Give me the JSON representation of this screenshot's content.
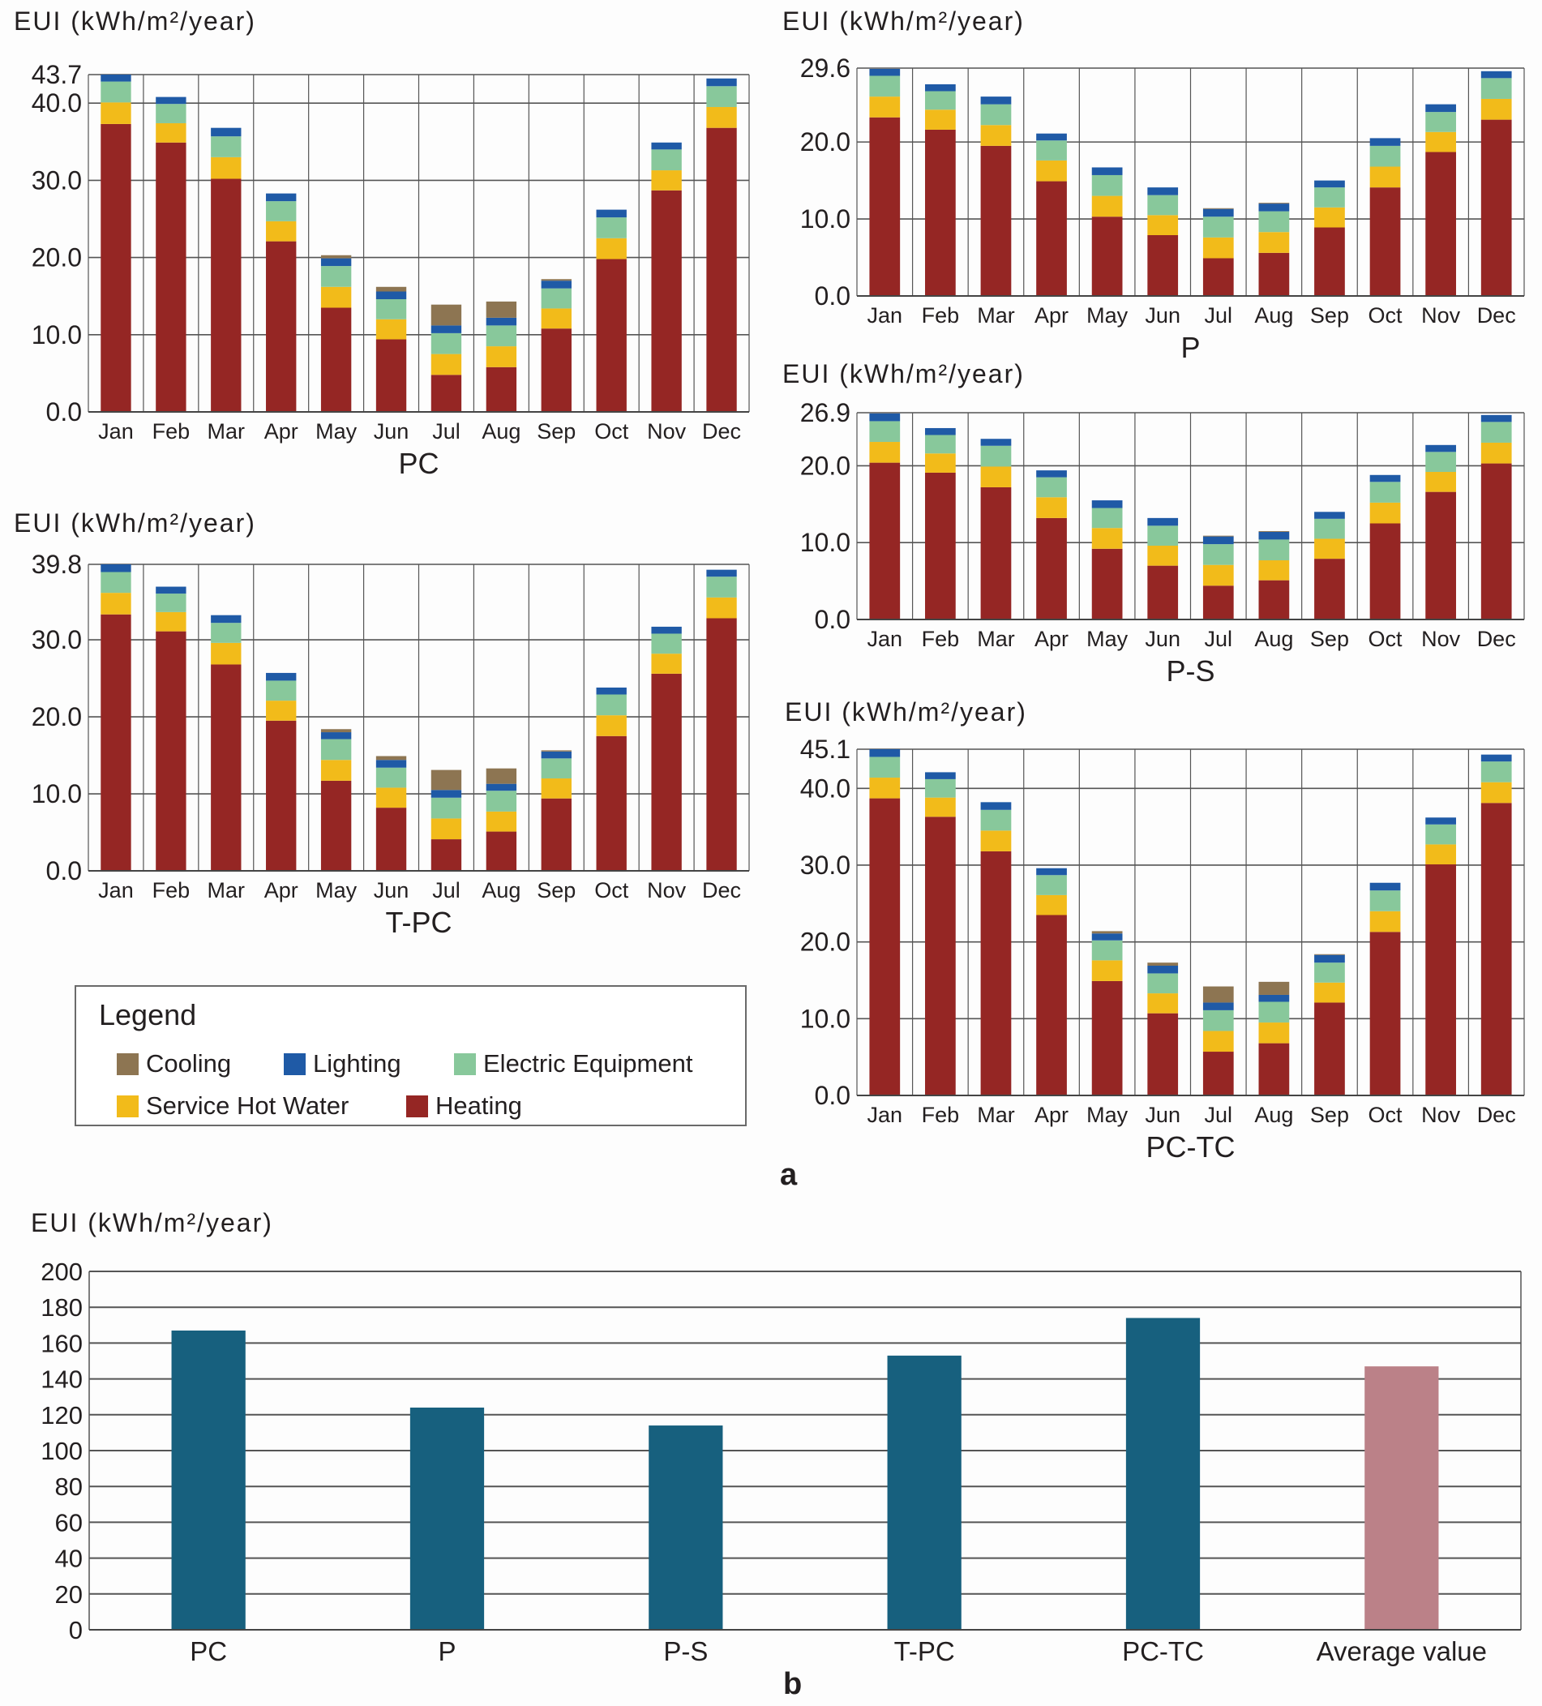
{
  "colors": {
    "Heating": "#952624",
    "Service Hot Water": "#f2bb1a",
    "Electric Equipment": "#88c89b",
    "Lighting": "#1f5aa6",
    "Cooling": "#8d7552",
    "bar": "#17607e",
    "average": "#bb8188"
  },
  "legend": {
    "title": "Legend",
    "items": [
      "Cooling",
      "Lighting",
      "Electric Equipment",
      "Service Hot Water",
      "Heating"
    ]
  },
  "panel_labels": {
    "a": "a",
    "b": "b"
  },
  "chart_data": [
    {
      "type": "bar",
      "stacked": true,
      "title": "PC",
      "ylabel": "EUI (kWh/m²/year)",
      "ylim": [
        0,
        43.7
      ],
      "yticks": [
        "0.0",
        "10.0",
        "20.0",
        "30.0",
        "40.0",
        "43.7"
      ],
      "ytick_values": [
        0,
        10,
        20,
        30,
        40,
        43.7
      ],
      "categories": [
        "Jan",
        "Feb",
        "Mar",
        "Apr",
        "May",
        "Jun",
        "Jul",
        "Aug",
        "Sep",
        "Oct",
        "Nov",
        "Dec"
      ],
      "series": [
        {
          "name": "Heating",
          "values": [
            37.3,
            34.9,
            30.2,
            22.1,
            13.5,
            9.4,
            4.8,
            5.8,
            10.8,
            19.8,
            28.7,
            36.8
          ]
        },
        {
          "name": "Service Hot Water",
          "values": [
            2.8,
            2.5,
            2.8,
            2.6,
            2.7,
            2.6,
            2.7,
            2.7,
            2.6,
            2.7,
            2.6,
            2.7
          ]
        },
        {
          "name": "Electric Equipment",
          "values": [
            2.7,
            2.5,
            2.7,
            2.6,
            2.7,
            2.6,
            2.7,
            2.7,
            2.6,
            2.7,
            2.7,
            2.7
          ]
        },
        {
          "name": "Lighting",
          "values": [
            0.9,
            0.9,
            1.1,
            1.0,
            1.0,
            1.0,
            1.0,
            1.0,
            1.0,
            1.0,
            0.9,
            1.0
          ]
        },
        {
          "name": "Cooling",
          "values": [
            0,
            0,
            0,
            0,
            0.4,
            0.6,
            2.7,
            2.1,
            0.2,
            0,
            0,
            0
          ]
        }
      ]
    },
    {
      "type": "bar",
      "stacked": true,
      "title": "P",
      "ylabel": "EUI (kWh/m²/year)",
      "ylim": [
        0,
        29.6
      ],
      "yticks": [
        "0.0",
        "10.0",
        "20.0",
        "29.6"
      ],
      "ytick_values": [
        0,
        10,
        20,
        29.6
      ],
      "categories": [
        "Jan",
        "Feb",
        "Mar",
        "Apr",
        "May",
        "Jun",
        "Jul",
        "Aug",
        "Sep",
        "Oct",
        "Nov",
        "Dec"
      ],
      "series": [
        {
          "name": "Heating",
          "values": [
            23.2,
            21.6,
            19.5,
            14.9,
            10.3,
            7.9,
            4.9,
            5.6,
            8.9,
            14.1,
            18.7,
            22.9
          ]
        },
        {
          "name": "Service Hot Water",
          "values": [
            2.7,
            2.6,
            2.7,
            2.7,
            2.7,
            2.6,
            2.7,
            2.7,
            2.6,
            2.7,
            2.6,
            2.7
          ]
        },
        {
          "name": "Electric Equipment",
          "values": [
            2.7,
            2.4,
            2.7,
            2.6,
            2.7,
            2.6,
            2.7,
            2.7,
            2.6,
            2.7,
            2.6,
            2.7
          ]
        },
        {
          "name": "Lighting",
          "values": [
            0.9,
            0.9,
            1.0,
            0.9,
            1.0,
            1.0,
            1.0,
            1.0,
            0.9,
            1.0,
            1.0,
            0.9
          ]
        },
        {
          "name": "Cooling",
          "values": [
            0,
            0,
            0,
            0,
            0,
            0,
            0.1,
            0.1,
            0,
            0,
            0,
            0
          ]
        }
      ]
    },
    {
      "type": "bar",
      "stacked": true,
      "title": "P-S",
      "ylabel": "EUI (kWh/m²/year)",
      "ylim": [
        0,
        26.9
      ],
      "yticks": [
        "0.0",
        "10.0",
        "20.0",
        "26.9"
      ],
      "ytick_values": [
        0,
        10,
        20,
        26.9
      ],
      "categories": [
        "Jan",
        "Feb",
        "Mar",
        "Apr",
        "May",
        "Jun",
        "Jul",
        "Aug",
        "Sep",
        "Oct",
        "Nov",
        "Dec"
      ],
      "series": [
        {
          "name": "Heating",
          "values": [
            20.4,
            19.1,
            17.2,
            13.2,
            9.2,
            7.0,
            4.4,
            5.1,
            7.9,
            12.5,
            16.6,
            20.3
          ]
        },
        {
          "name": "Service Hot Water",
          "values": [
            2.7,
            2.5,
            2.7,
            2.7,
            2.7,
            2.6,
            2.7,
            2.6,
            2.6,
            2.7,
            2.6,
            2.7
          ]
        },
        {
          "name": "Electric Equipment",
          "values": [
            2.7,
            2.4,
            2.7,
            2.6,
            2.6,
            2.6,
            2.7,
            2.7,
            2.6,
            2.7,
            2.6,
            2.7
          ]
        },
        {
          "name": "Lighting",
          "values": [
            1.0,
            0.9,
            0.9,
            0.9,
            1.0,
            1.0,
            1.0,
            1.0,
            0.9,
            0.9,
            0.9,
            0.9
          ]
        },
        {
          "name": "Cooling",
          "values": [
            0,
            0,
            0,
            0,
            0,
            0,
            0.1,
            0.1,
            0,
            0,
            0,
            0
          ]
        }
      ]
    },
    {
      "type": "bar",
      "stacked": true,
      "title": "T-PC",
      "ylabel": "EUI (kWh/m²/year)",
      "ylim": [
        0,
        39.8
      ],
      "yticks": [
        "0.0",
        "10.0",
        "20.0",
        "30.0",
        "39.8"
      ],
      "ytick_values": [
        0,
        10,
        20,
        30,
        39.8
      ],
      "categories": [
        "Jan",
        "Feb",
        "Mar",
        "Apr",
        "May",
        "Jun",
        "Jul",
        "Aug",
        "Sep",
        "Oct",
        "Nov",
        "Dec"
      ],
      "series": [
        {
          "name": "Heating",
          "values": [
            33.3,
            31.1,
            26.8,
            19.5,
            11.7,
            8.2,
            4.1,
            5.1,
            9.4,
            17.5,
            25.6,
            32.8
          ]
        },
        {
          "name": "Service Hot Water",
          "values": [
            2.8,
            2.5,
            2.8,
            2.6,
            2.7,
            2.6,
            2.7,
            2.6,
            2.6,
            2.7,
            2.6,
            2.7
          ]
        },
        {
          "name": "Electric Equipment",
          "values": [
            2.7,
            2.4,
            2.6,
            2.6,
            2.7,
            2.6,
            2.7,
            2.7,
            2.6,
            2.7,
            2.6,
            2.7
          ]
        },
        {
          "name": "Lighting",
          "values": [
            1.0,
            0.9,
            1.0,
            1.0,
            0.9,
            1.0,
            1.0,
            0.9,
            0.9,
            0.9,
            0.9,
            0.9
          ]
        },
        {
          "name": "Cooling",
          "values": [
            0,
            0,
            0,
            0,
            0.4,
            0.5,
            2.6,
            2.0,
            0.15,
            0,
            0,
            0
          ]
        }
      ]
    },
    {
      "type": "bar",
      "stacked": true,
      "title": "PC-TC",
      "ylabel": "EUI (kWh/m²/year)",
      "ylim": [
        0,
        45.1
      ],
      "yticks": [
        "0.0",
        "10.0",
        "20.0",
        "30.0",
        "40.0",
        "45.1"
      ],
      "ytick_values": [
        0,
        10,
        20,
        30,
        40,
        45.1
      ],
      "categories": [
        "Jan",
        "Feb",
        "Mar",
        "Apr",
        "May",
        "Jun",
        "Jul",
        "Aug",
        "Sep",
        "Oct",
        "Nov",
        "Dec"
      ],
      "series": [
        {
          "name": "Heating",
          "values": [
            38.7,
            36.3,
            31.8,
            23.5,
            14.9,
            10.7,
            5.7,
            6.8,
            12.1,
            21.3,
            30.1,
            38.1
          ]
        },
        {
          "name": "Service Hot Water",
          "values": [
            2.7,
            2.5,
            2.7,
            2.6,
            2.7,
            2.6,
            2.7,
            2.7,
            2.6,
            2.7,
            2.6,
            2.7
          ]
        },
        {
          "name": "Electric Equipment",
          "values": [
            2.7,
            2.4,
            2.7,
            2.6,
            2.6,
            2.6,
            2.7,
            2.7,
            2.6,
            2.7,
            2.6,
            2.7
          ]
        },
        {
          "name": "Lighting",
          "values": [
            1.0,
            0.9,
            1.0,
            0.9,
            0.9,
            1.0,
            1.0,
            0.9,
            1.0,
            1.0,
            0.9,
            0.9
          ]
        },
        {
          "name": "Cooling",
          "values": [
            0,
            0,
            0,
            0,
            0.3,
            0.4,
            2.1,
            1.7,
            0.1,
            0,
            0,
            0
          ]
        }
      ]
    },
    {
      "type": "bar",
      "stacked": false,
      "title": "",
      "ylabel": "EUI (kWh/m²/year)",
      "ylim": [
        0,
        200
      ],
      "yticks": [
        "0",
        "20",
        "40",
        "60",
        "80",
        "100",
        "120",
        "140",
        "160",
        "180",
        "200"
      ],
      "ytick_values": [
        0,
        20,
        40,
        60,
        80,
        100,
        120,
        140,
        160,
        180,
        200
      ],
      "categories": [
        "PC",
        "P",
        "P-S",
        "T-PC",
        "PC-TC",
        "Average value"
      ],
      "values": [
        167,
        124,
        114,
        153,
        174,
        147
      ]
    }
  ]
}
